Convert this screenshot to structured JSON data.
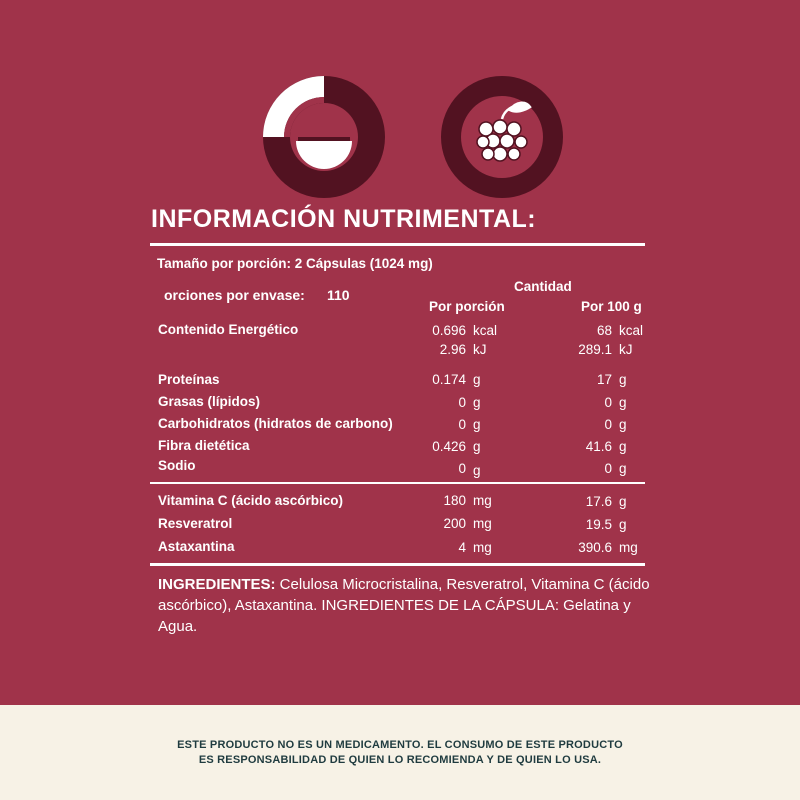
{
  "colors": {
    "background": "#a0334a",
    "dark": "#521221",
    "white": "#ffffff",
    "footer_bg": "#f7f2e6",
    "footer_text": "#1f3b3f"
  },
  "icons": [
    "stomach-progress-icon",
    "grapes-icon"
  ],
  "title": "INFORMACIÓN NUTRIMENTAL:",
  "serving_size": "Tamaño por porción: 2 Cápsulas (1024 mg)",
  "servings": {
    "label": "orciones por envase:",
    "value": "110"
  },
  "headers": {
    "cantidad": "Cantidad",
    "per_serving": "Por porción",
    "per_100g": "Por 100 g"
  },
  "energy": {
    "label": "Contenido Energético",
    "kcal": {
      "serving": "0.696",
      "per100": "68",
      "unit": "kcal"
    },
    "kj": {
      "serving": "2.96",
      "per100": "289.1",
      "unit": "kJ"
    }
  },
  "nutrients": [
    {
      "name": "Proteínas",
      "serving": "0.174",
      "unit1": "g",
      "per100": "17",
      "unit2": "g"
    },
    {
      "name": "Grasas (lípidos)",
      "serving": "0",
      "unit1": "g",
      "per100": "0",
      "unit2": "g"
    },
    {
      "name": "Carbohidratos (hidratos de carbono)",
      "serving": "0",
      "unit1": "g",
      "per100": "0",
      "unit2": "g"
    },
    {
      "name": "Fibra dietética",
      "serving": "0.426",
      "unit1": "g",
      "per100": "41.6",
      "unit2": "g"
    },
    {
      "name": "Sodio",
      "serving": "0",
      "unit1": "g",
      "per100": "0",
      "unit2": "g"
    }
  ],
  "actives": [
    {
      "name": "Vitamina C (ácido ascórbico)",
      "serving": "180",
      "unit1": "mg",
      "per100": "17.6",
      "unit2": "g"
    },
    {
      "name": "Resveratrol",
      "serving": "200",
      "unit1": "mg",
      "per100": "19.5",
      "unit2": "g"
    },
    {
      "name": "Astaxantina",
      "serving": "4",
      "unit1": "mg",
      "per100": "390.6",
      "unit2": "mg"
    }
  ],
  "ingredients": {
    "label": "INGREDIENTES:",
    "text": " Celulosa Microcristalina, Resveratrol, Vitamina C (ácido ascórbico), Astaxantina. INGREDIENTES DE LA CÁPSULA: Gelatina y Agua."
  },
  "footer": {
    "line1": "ESTE PRODUCTO NO ES UN MEDICAMENTO. EL CONSUMO DE ESTE PRODUCTO",
    "line2": "ES RESPONSABILIDAD DE QUIEN LO RECOMIENDA Y DE QUIEN LO USA."
  }
}
